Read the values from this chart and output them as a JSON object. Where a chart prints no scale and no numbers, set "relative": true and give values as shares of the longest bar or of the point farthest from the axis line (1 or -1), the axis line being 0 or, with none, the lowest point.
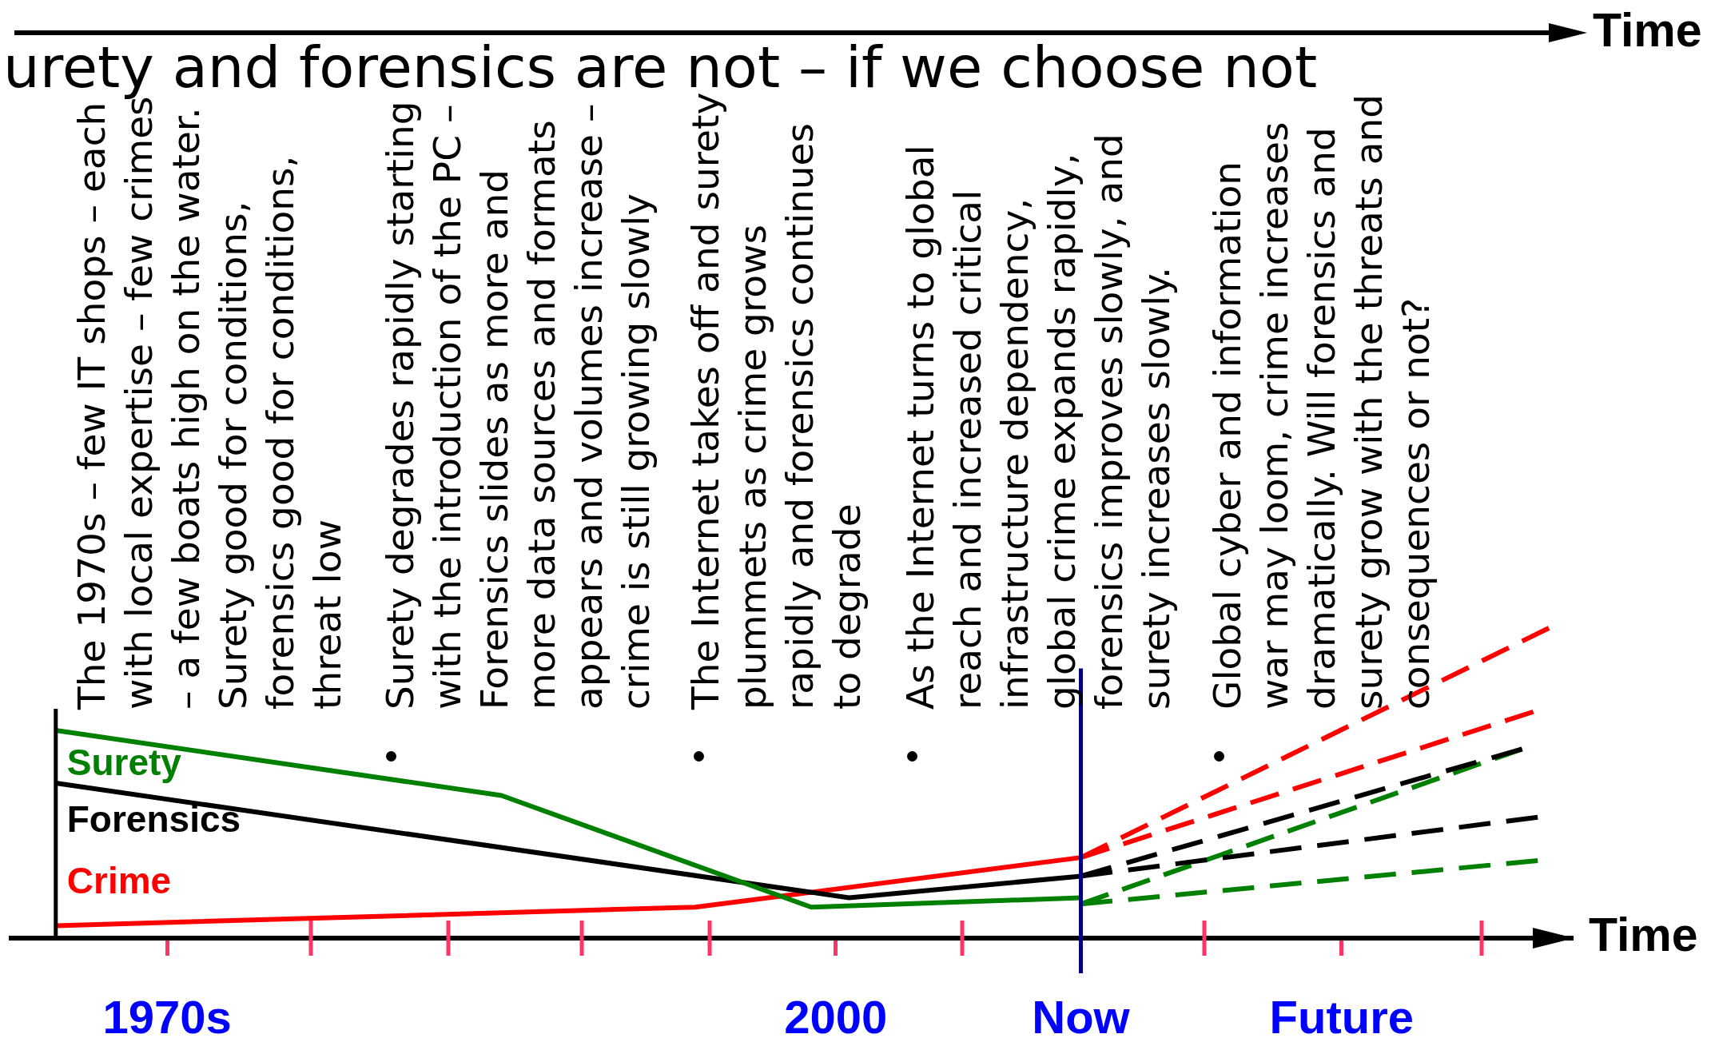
{
  "chart_data": {
    "type": "line",
    "title": "urety and forensics are not – if we choose not",
    "xlabel": "Time",
    "relative": true,
    "annotations": [
      "The 1970s – few IT shops – each\nwith local expertise – few crimes\n– a few boats high on the water.\nSurety good for conditions,\nforensics good for conditions,\nthreat low",
      "Surety degrades rapidly starting\nwith the introduction of the PC –\nForensics slides as more and\nmore data sources and formats\nappears and volumes increase –\ncrime is still growing slowly",
      "The Internet takes off and surety\nplummets as crime grows\nrapidly and forensics continues\nto degrade",
      "As the Internet turns to global\nreach and increased critical\ninfrastructure dependency,\nglobal crime expands rapidly,\nforensics improves slowly, and\nsurety increases slowly.",
      "Global cyber and information\nwar may loom, crime increases\ndramatically. Will forensics and\nsurety grow with the threats and\nconsequences or not?",
      "Time"
    ],
    "xlim": [
      1963,
      2033
    ],
    "xticks": [
      {
        "value": 1970,
        "label": "1970s"
      },
      {
        "value": 2000,
        "label": "2000"
      },
      {
        "value": 2011,
        "label": "Now"
      },
      {
        "value": 2022.7,
        "label": "Future"
      }
    ],
    "ref_lines": [
      {
        "axis": "x",
        "value": 2011,
        "color": "#000080"
      },
      {
        "axis": "x",
        "value": 1965,
        "color": "#000000"
      }
    ],
    "series": [
      {
        "name": "Surety",
        "color": "#008000",
        "x": [
          1965,
          1985,
          1998.9,
          2011
        ],
        "values": [
          0.67,
          0.46,
          0.1,
          0.13
        ]
      },
      {
        "name": "Forensics",
        "color": "#000000",
        "x": [
          1965,
          2000.6,
          2011
        ],
        "values": [
          0.5,
          0.13,
          0.2
        ]
      },
      {
        "name": "Crime",
        "color": "#ff0000",
        "x": [
          1965,
          1993.7,
          2011
        ],
        "values": [
          0.04,
          0.1,
          0.26
        ]
      },
      {
        "color": "#000000",
        "line_style": "dashed",
        "x": [
          2011,
          2030.8
        ],
        "values": [
          0.2,
          0.61
        ]
      },
      {
        "color": "#000000",
        "line_style": "dashed",
        "x": [
          2011,
          2031.5
        ],
        "values": [
          0.2,
          0.39
        ]
      },
      {
        "color": "#008000",
        "line_style": "dashed",
        "x": [
          2011,
          2030.8
        ],
        "values": [
          0.11,
          0.61
        ]
      },
      {
        "color": "#008000",
        "line_style": "dashed",
        "x": [
          2011,
          2031.5
        ],
        "values": [
          0.11,
          0.25
        ]
      },
      {
        "color": "#ff0000",
        "line_style": "dashed",
        "x": [
          2011,
          2032
        ],
        "values": [
          0.26,
          1
        ]
      },
      {
        "color": "#ff0000",
        "line_style": "dashed",
        "x": [
          2011,
          2031.3
        ],
        "values": [
          0.26,
          0.73
        ]
      }
    ]
  }
}
